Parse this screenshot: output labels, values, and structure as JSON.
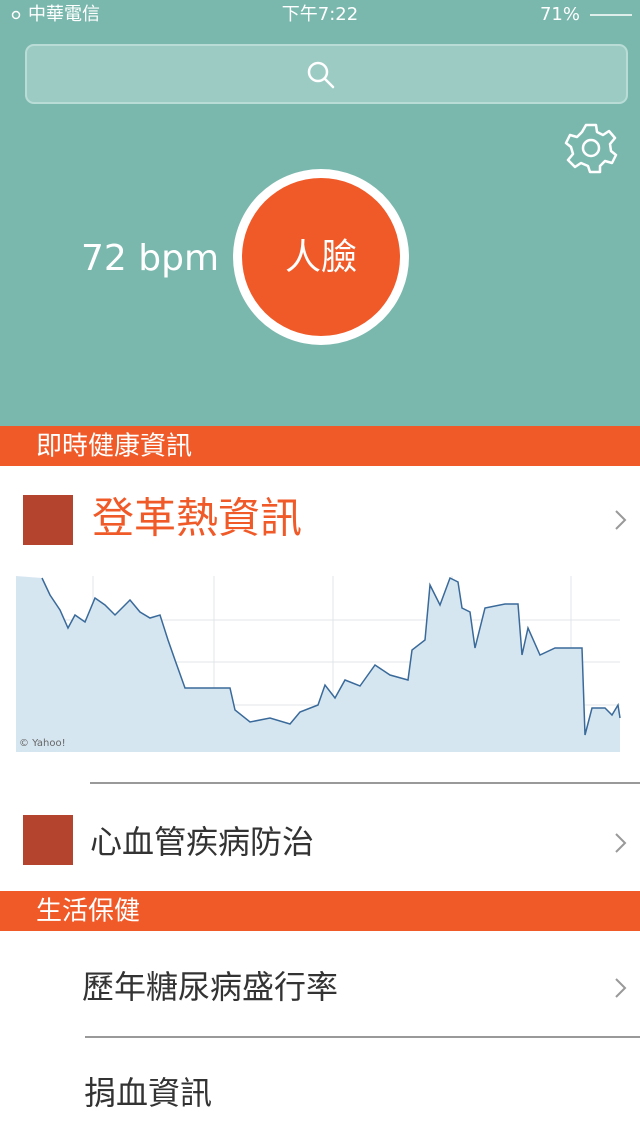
{
  "status_bar": {
    "carrier": "中華電信",
    "time": "下午7:22",
    "battery": "71%"
  },
  "heart_rate": "72 bpm",
  "face_button": "人臉",
  "sections": [
    {
      "title": "即時健康資訊",
      "items": [
        {
          "label": "登革熱資訊",
          "chart_credit": "© Yahoo!"
        },
        {
          "label": "心血管疾病防治"
        }
      ]
    },
    {
      "title": "生活保健",
      "items": [
        {
          "label": "歷年糖尿病盛行率"
        },
        {
          "label": "捐血資訊"
        }
      ]
    }
  ]
}
